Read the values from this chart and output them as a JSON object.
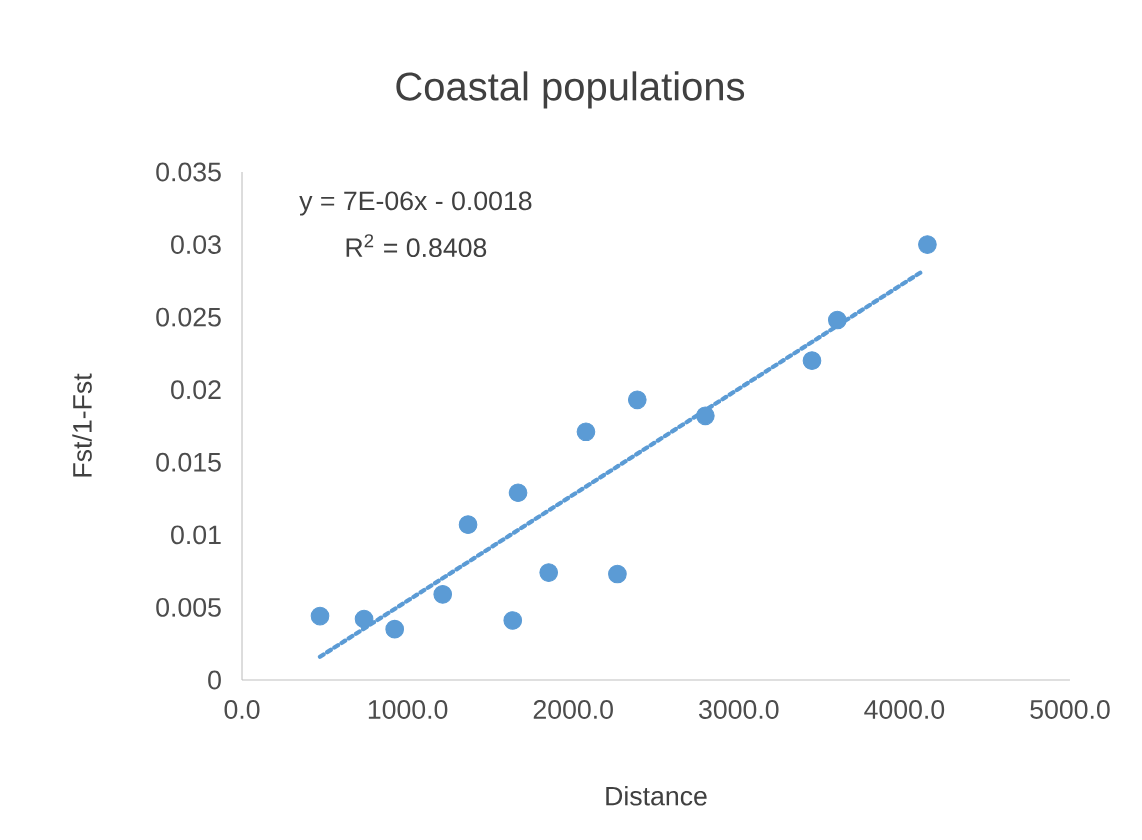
{
  "chart_data": {
    "type": "scatter",
    "title": "Coastal populations",
    "xlabel": "Distance",
    "ylabel": "Fst/1-Fst",
    "annotations": [
      "y = 7E-06x - 0.0018",
      "R$^{2}$ = 0.8408"
    ],
    "xlim": [
      0,
      5000
    ],
    "ylim": [
      0,
      0.035
    ],
    "xticks": [
      {
        "value": 0,
        "label": "0.0"
      },
      {
        "value": 1000,
        "label": "1000.0"
      },
      {
        "value": 2000,
        "label": "2000.0"
      },
      {
        "value": 3000,
        "label": "3000.0"
      },
      {
        "value": 4000,
        "label": "4000.0"
      },
      {
        "value": 5000,
        "label": "5000.0"
      }
    ],
    "yticks": [
      0,
      0.005,
      0.01,
      0.015,
      0.02,
      0.025,
      0.03,
      0.035
    ],
    "grid": false,
    "series": [
      {
        "type": "scatter",
        "color": "#5b9bd5",
        "marker": "circle",
        "x": [
          471,
          737,
          922,
          1212,
          1365,
          1635,
          1667,
          1852,
          2077,
          2267,
          2387,
          2798,
          3442,
          3595,
          4139
        ],
        "values": [
          0.0044,
          0.0042,
          0.0035,
          0.0059,
          0.0107,
          0.0041,
          0.0129,
          0.0074,
          0.0171,
          0.0073,
          0.0193,
          0.0182,
          0.022,
          0.0248,
          0.03
        ]
      },
      {
        "type": "line",
        "color": "#5b9bd5",
        "marker": "none",
        "line_style": "dotted",
        "x": [
          471,
          4115
        ],
        "values": [
          0.0016,
          0.0282
        ]
      }
    ]
  }
}
